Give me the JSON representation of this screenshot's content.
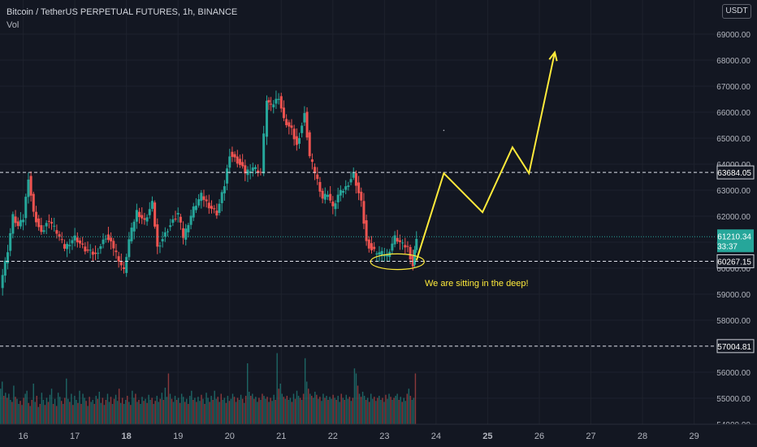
{
  "header": {
    "title": "Bitcoin / TetherUS PERPETUAL FUTURES, 1h, BINANCE",
    "volume_label": "Vol",
    "currency_button": "USDT"
  },
  "annotation": {
    "text": "We are sitting in the deep!",
    "color": "#ffeb3b"
  },
  "colors": {
    "up": "#26a69a",
    "down": "#ef5350",
    "background": "#131722",
    "axis_text": "#d1d4dc",
    "grid": "#1e222d"
  },
  "chart_data": {
    "type": "candlestick",
    "title": "Bitcoin / TetherUS PERPETUAL FUTURES, 1h, BINANCE",
    "price_ticks": [
      "69000.00",
      "68000.00",
      "67000.00",
      "66000.00",
      "65000.00",
      "64000.00",
      "63000.00",
      "62000.00",
      "61000.00",
      "60000.00",
      "59000.00",
      "58000.00",
      "57000.00",
      "56000.00",
      "55000.00",
      "54000.00"
    ],
    "price_ticks_values": [
      69000,
      68000,
      67000,
      66000,
      65000,
      64000,
      63000,
      62000,
      61000,
      60000,
      59000,
      58000,
      57000,
      56000,
      55000,
      54000
    ],
    "date_labels": [
      "16",
      "17",
      "18",
      "19",
      "20",
      "21",
      "22",
      "23",
      "24",
      "25",
      "26",
      "27",
      "28",
      "29"
    ],
    "date_values": [
      16,
      17,
      18,
      19,
      20,
      21,
      22,
      23,
      24,
      25,
      26,
      27,
      28,
      29
    ],
    "bold_dates": [
      "18",
      "25"
    ],
    "ylim": [
      54000,
      70000
    ],
    "xlim": [
      15.55,
      29.4
    ],
    "horizontal_levels": [
      {
        "price": 63684.05,
        "label": "63684.05"
      },
      {
        "price": 60267.15,
        "label": "60267.15"
      },
      {
        "price": 57004.81,
        "label": "57004.81"
      }
    ],
    "current_price": {
      "price": 61210.34,
      "label": "61210.34",
      "countdown": "33:37"
    },
    "price_path": [
      [
        15.55,
        59300
      ],
      [
        15.7,
        60700
      ],
      [
        15.8,
        62000
      ],
      [
        15.9,
        61600
      ],
      [
        16.0,
        61900
      ],
      [
        16.1,
        63500
      ],
      [
        16.2,
        62100
      ],
      [
        16.35,
        61300
      ],
      [
        16.5,
        61900
      ],
      [
        16.65,
        61400
      ],
      [
        16.8,
        60800
      ],
      [
        17.0,
        61200
      ],
      [
        17.2,
        60700
      ],
      [
        17.4,
        60500
      ],
      [
        17.6,
        61200
      ],
      [
        17.75,
        60800
      ],
      [
        17.95,
        59900
      ],
      [
        18.05,
        61100
      ],
      [
        18.2,
        62200
      ],
      [
        18.35,
        61800
      ],
      [
        18.5,
        62500
      ],
      [
        18.6,
        60800
      ],
      [
        18.8,
        61500
      ],
      [
        19.0,
        62100
      ],
      [
        19.1,
        61200
      ],
      [
        19.3,
        62300
      ],
      [
        19.45,
        62800
      ],
      [
        19.6,
        62400
      ],
      [
        19.75,
        62100
      ],
      [
        19.9,
        63200
      ],
      [
        20.0,
        64400
      ],
      [
        20.15,
        64100
      ],
      [
        20.3,
        63700
      ],
      [
        20.45,
        63900
      ],
      [
        20.6,
        63700
      ],
      [
        20.72,
        66500
      ],
      [
        20.8,
        66200
      ],
      [
        20.95,
        66600
      ],
      [
        21.05,
        65700
      ],
      [
        21.2,
        65300
      ],
      [
        21.3,
        64700
      ],
      [
        21.45,
        65900
      ],
      [
        21.55,
        64300
      ],
      [
        21.7,
        63400
      ],
      [
        21.8,
        62700
      ],
      [
        21.9,
        62900
      ],
      [
        22.0,
        62300
      ],
      [
        22.1,
        62800
      ],
      [
        22.25,
        63100
      ],
      [
        22.4,
        63600
      ],
      [
        22.55,
        62500
      ],
      [
        22.65,
        61000
      ],
      [
        22.75,
        60700
      ],
      [
        22.9,
        60600
      ],
      [
        23.05,
        60500
      ],
      [
        23.2,
        61200
      ],
      [
        23.35,
        60900
      ],
      [
        23.45,
        60800
      ],
      [
        23.55,
        60100
      ],
      [
        23.62,
        61210
      ]
    ],
    "volume_heights": [
      0.35,
      0.42,
      0.28,
      0.31,
      0.26,
      0.3,
      0.24,
      0.22,
      0.38,
      0.27,
      0.25,
      0.2,
      0.23,
      0.19,
      0.26,
      0.3,
      0.33,
      0.21,
      0.18,
      0.24,
      0.4,
      0.22,
      0.28,
      0.17,
      0.2,
      0.31,
      0.24,
      0.19,
      0.26,
      0.22,
      0.29,
      0.35,
      0.2,
      0.25,
      0.18,
      0.31,
      0.27,
      0.23,
      0.2,
      0.26,
      0.45,
      0.25,
      0.22,
      0.3,
      0.19,
      0.28,
      0.24,
      0.21,
      0.33,
      0.2,
      0.3,
      0.26,
      0.23,
      0.18,
      0.27,
      0.22,
      0.24,
      0.2,
      0.28,
      0.25,
      0.32,
      0.21,
      0.26,
      0.19,
      0.24,
      0.3,
      0.22,
      0.27,
      0.2,
      0.25,
      0.29,
      0.23,
      0.35,
      0.21,
      0.26,
      0.2,
      0.24,
      0.28,
      0.22,
      0.19,
      0.33,
      0.26,
      0.3,
      0.22,
      0.24,
      0.2,
      0.27,
      0.23,
      0.25,
      0.21,
      0.29,
      0.24,
      0.26,
      0.2,
      0.23,
      0.28,
      0.22,
      0.25,
      0.31,
      0.24,
      0.36,
      0.27,
      0.5,
      0.3,
      0.25,
      0.22,
      0.28,
      0.24,
      0.26,
      0.21,
      0.3,
      0.27,
      0.22,
      0.25,
      0.2,
      0.28,
      0.33,
      0.24,
      0.26,
      0.22,
      0.27,
      0.23,
      0.29,
      0.25,
      0.2,
      0.31,
      0.26,
      0.22,
      0.28,
      0.24,
      0.33,
      0.25,
      0.27,
      0.22,
      0.3,
      0.24,
      0.26,
      0.21,
      0.28,
      0.23,
      0.25,
      0.3,
      0.27,
      0.22,
      0.26,
      0.24,
      0.29,
      0.25,
      0.21,
      0.28,
      0.6,
      0.32,
      0.28,
      0.3,
      0.25,
      0.27,
      0.22,
      0.26,
      0.24,
      0.3,
      0.28,
      0.25,
      0.27,
      0.22,
      0.26,
      0.23,
      0.29,
      0.24,
      0.7,
      0.35,
      0.4,
      0.3,
      0.27,
      0.25,
      0.28,
      0.24,
      0.26,
      0.22,
      0.3,
      0.25,
      0.33,
      0.28,
      0.26,
      0.24,
      0.3,
      0.65,
      0.42,
      0.35,
      0.3,
      0.28,
      0.26,
      0.32,
      0.29,
      0.25,
      0.27,
      0.23,
      0.3,
      0.26,
      0.28,
      0.24,
      0.27,
      0.25,
      0.29,
      0.26,
      0.24,
      0.28,
      0.22,
      0.3,
      0.26,
      0.24,
      0.29,
      0.25,
      0.27,
      0.23,
      0.26,
      0.55,
      0.5,
      0.38,
      0.3,
      0.27,
      0.32,
      0.28,
      0.24,
      0.26,
      0.22,
      0.3,
      0.25,
      0.27,
      0.23,
      0.26,
      0.28,
      0.24,
      0.26,
      0.22,
      0.29,
      0.25,
      0.3,
      0.27,
      0.24,
      0.26,
      0.28,
      0.3,
      0.24,
      0.27,
      0.22,
      0.26,
      0.23,
      0.3,
      0.35,
      0.28,
      0.24,
      0.26,
      0.5
    ],
    "projection_path": [
      [
        23.62,
        60300
      ],
      [
        24.15,
        63650
      ],
      [
        24.9,
        62150
      ],
      [
        25.48,
        64650
      ],
      [
        25.8,
        63650
      ],
      [
        26.3,
        68300
      ]
    ],
    "ellipse": {
      "center_date": 23.25,
      "center_price": 60250,
      "rx_days": 0.52,
      "ry_price": 300
    },
    "marker_point": {
      "date": 24.15,
      "price": 65300
    }
  }
}
